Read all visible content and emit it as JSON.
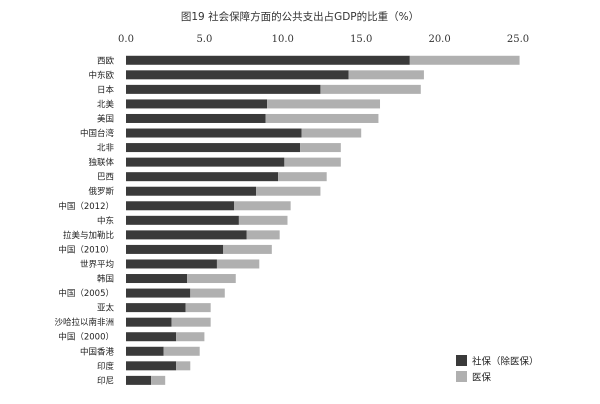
{
  "chart_data": {
    "type": "bar",
    "orientation": "horizontal",
    "stacked": true,
    "title": "图19 社会保障方面的公共支出占GDP的比重（%）",
    "xlim": [
      0,
      25
    ],
    "xticks": [
      "0.0",
      "5.0",
      "10.0",
      "15.0",
      "20.0",
      "25.0"
    ],
    "categories": [
      "西欧",
      "中东欧",
      "日本",
      "北美",
      "美国",
      "中国台湾",
      "北非",
      "独联体",
      "巴西",
      "俄罗斯",
      "中国（2012）",
      "中东",
      "拉美与加勒比",
      "中国（2010）",
      "世界平均",
      "韩国",
      "中国（2005）",
      "亚太",
      "沙哈拉以南非洲",
      "中国（2000）",
      "中国香港",
      "印度",
      "印尼"
    ],
    "series": [
      {
        "name": "社保（除医保）",
        "color": "#3a3a3a",
        "values": [
          18.1,
          14.2,
          12.4,
          9.0,
          8.9,
          11.2,
          11.1,
          10.1,
          9.7,
          8.3,
          6.9,
          7.2,
          7.7,
          6.2,
          5.8,
          3.9,
          4.1,
          3.8,
          2.9,
          3.2,
          2.4,
          3.2,
          1.6
        ]
      },
      {
        "name": "医保",
        "color": "#b0b0b0",
        "values": [
          7.0,
          4.8,
          6.4,
          7.2,
          7.2,
          3.8,
          2.6,
          3.6,
          3.1,
          4.1,
          3.6,
          3.1,
          2.1,
          3.1,
          2.7,
          3.1,
          2.2,
          1.6,
          2.5,
          1.8,
          2.3,
          0.9,
          0.9
        ]
      }
    ],
    "legend_position": "bottom-right",
    "grid": false
  }
}
